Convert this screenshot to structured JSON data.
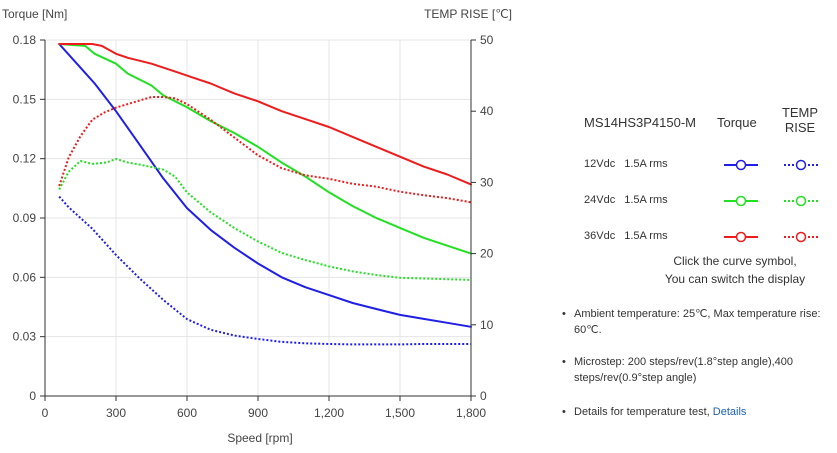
{
  "chart_data": {
    "type": "line",
    "y_left_label": "Torque  [Nm]",
    "y_right_label": "TEMP RISE [℃]",
    "xlabel": "Speed [rpm]",
    "xlim": [
      0,
      1800
    ],
    "ylim_left": [
      0,
      0.18
    ],
    "ylim_right": [
      0,
      50
    ],
    "x_ticks": [
      0,
      300,
      600,
      900,
      1200,
      1500,
      1800
    ],
    "x_tick_labels": [
      "0",
      "300",
      "600",
      "900",
      "1,200",
      "1,500",
      "1,800"
    ],
    "y_left_ticks": [
      0,
      0.03,
      0.06,
      0.09,
      0.12,
      0.15,
      0.18
    ],
    "y_left_tick_labels": [
      "0",
      "0.03",
      "0.06",
      "0.09",
      "0.12",
      "0.15",
      "0.18"
    ],
    "y_right_ticks": [
      0,
      10,
      20,
      30,
      40,
      50
    ],
    "y_right_tick_labels": [
      "0",
      "10",
      "20",
      "30",
      "40",
      "50"
    ],
    "grid": true,
    "series": [
      {
        "name": "12Vdc 1.5A rms Torque",
        "axis": "left",
        "color": "#1f1fe6",
        "dash": false,
        "x": [
          60,
          150,
          210,
          300,
          400,
          500,
          600,
          700,
          800,
          900,
          1000,
          1100,
          1200,
          1300,
          1400,
          1500,
          1600,
          1700,
          1800
        ],
        "y": [
          0.178,
          0.166,
          0.158,
          0.144,
          0.127,
          0.11,
          0.095,
          0.084,
          0.075,
          0.067,
          0.06,
          0.055,
          0.051,
          0.047,
          0.044,
          0.041,
          0.039,
          0.037,
          0.035
        ]
      },
      {
        "name": "12Vdc 1.5A rms TEMP RISE",
        "axis": "right",
        "color": "#1f1fe6",
        "dash": true,
        "x": [
          60,
          100,
          150,
          200,
          300,
          400,
          500,
          600,
          700,
          800,
          900,
          1000,
          1100,
          1200,
          1300,
          1400,
          1500,
          1600,
          1700,
          1800
        ],
        "y": [
          28,
          26.5,
          25,
          23.5,
          19.8,
          16.5,
          13.5,
          10.8,
          9.3,
          8.5,
          8.0,
          7.6,
          7.4,
          7.3,
          7.25,
          7.25,
          7.25,
          7.3,
          7.3,
          7.3
        ]
      },
      {
        "name": "24Vdc 1.5A rms Torque",
        "axis": "left",
        "color": "#22e022",
        "dash": false,
        "x": [
          60,
          170,
          210,
          300,
          350,
          450,
          500,
          600,
          700,
          800,
          900,
          1000,
          1100,
          1200,
          1300,
          1400,
          1500,
          1600,
          1700,
          1800
        ],
        "y": [
          0.178,
          0.177,
          0.173,
          0.168,
          0.163,
          0.157,
          0.152,
          0.146,
          0.139,
          0.133,
          0.126,
          0.118,
          0.111,
          0.103,
          0.096,
          0.09,
          0.085,
          0.08,
          0.076,
          0.072
        ]
      },
      {
        "name": "24Vdc 1.5A rms TEMP RISE",
        "axis": "right",
        "color": "#22e022",
        "dash": true,
        "x": [
          60,
          100,
          150,
          200,
          260,
          300,
          350,
          400,
          500,
          550,
          600,
          700,
          800,
          900,
          1000,
          1100,
          1200,
          1300,
          1400,
          1500,
          1600,
          1700,
          1800
        ],
        "y": [
          29,
          31.5,
          33,
          32.6,
          32.8,
          33.3,
          32.8,
          32.5,
          31.8,
          30.8,
          28.6,
          25.8,
          23.6,
          21.7,
          20.1,
          19.1,
          18.2,
          17.5,
          17.0,
          16.6,
          16.5,
          16.4,
          16.3
        ]
      },
      {
        "name": "36Vdc 1.5A rms Torque",
        "axis": "left",
        "color": "#ee1c1c",
        "dash": false,
        "x": [
          60,
          200,
          240,
          300,
          350,
          450,
          550,
          650,
          700,
          800,
          900,
          1000,
          1100,
          1200,
          1300,
          1400,
          1500,
          1600,
          1700,
          1800
        ],
        "y": [
          0.178,
          0.178,
          0.177,
          0.173,
          0.171,
          0.168,
          0.164,
          0.16,
          0.158,
          0.153,
          0.149,
          0.144,
          0.14,
          0.136,
          0.131,
          0.126,
          0.121,
          0.116,
          0.112,
          0.107
        ]
      },
      {
        "name": "36Vdc 1.5A rms TEMP RISE",
        "axis": "right",
        "color": "#ee1c1c",
        "dash": true,
        "x": [
          60,
          100,
          150,
          200,
          250,
          300,
          350,
          400,
          450,
          500,
          550,
          600,
          700,
          800,
          900,
          1000,
          1100,
          1200,
          1300,
          1400,
          1500,
          1600,
          1700,
          1800
        ],
        "y": [
          29.5,
          33.5,
          36.5,
          38.8,
          39.8,
          40.5,
          41.0,
          41.5,
          42.0,
          42.0,
          41.8,
          41.0,
          38.8,
          36.3,
          33.8,
          32.0,
          31.0,
          30.5,
          29.8,
          29.4,
          28.7,
          28.2,
          27.8,
          27.2
        ]
      }
    ]
  },
  "legend": {
    "model": "MS14HS3P4150-M",
    "torque_header": "Torque",
    "temp_header_line1": "TEMP",
    "temp_header_line2": "RISE",
    "rows": [
      {
        "voltage": "12Vdc",
        "current": "1.5A rms",
        "color": "#1f1fe6"
      },
      {
        "voltage": "24Vdc",
        "current": "1.5A rms",
        "color": "#22e022"
      },
      {
        "voltage": "36Vdc",
        "current": "1.5A rms",
        "color": "#ee1c1c"
      }
    ]
  },
  "hint": {
    "line1": "Click the curve symbol,",
    "line2": "You can switch the display"
  },
  "notes": {
    "ambient": "Ambient temperature: 25℃,  Max temperature rise: 60℃.",
    "microstep": "Microstep: 200 steps/rev(1.8°step angle),400 steps/rev(0.9°step angle)",
    "details_prefix": "Details for temperature test,",
    "details_link": "Details"
  }
}
